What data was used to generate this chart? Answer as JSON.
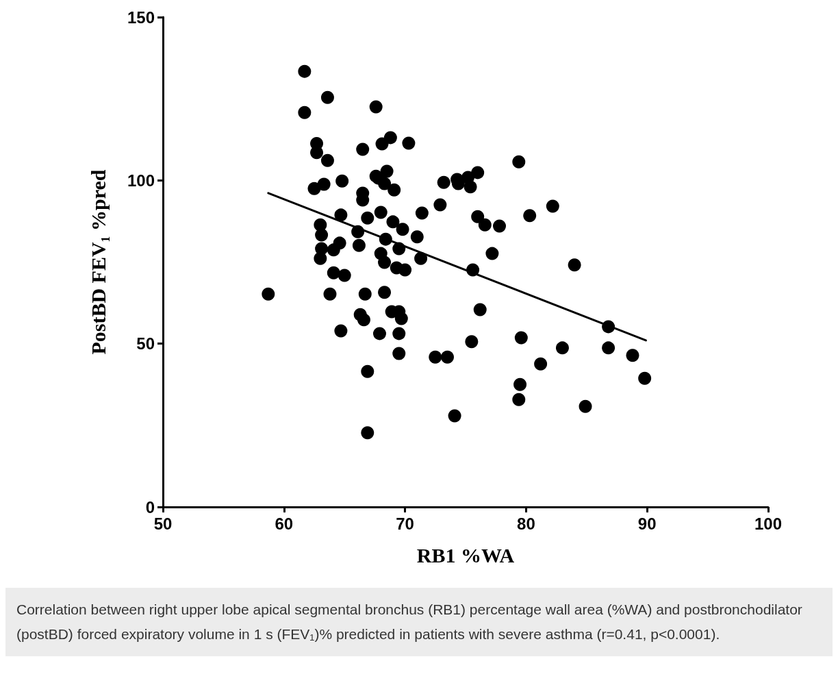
{
  "chart_data": {
    "type": "scatter",
    "xlabel": "RB1 %WA",
    "ylabel": "PostBD FEV₁ %pred",
    "xlim": [
      50,
      100
    ],
    "xticks": [
      50,
      60,
      70,
      80,
      90,
      100
    ],
    "ylim": [
      0,
      150
    ],
    "yticks": [
      0,
      50,
      100,
      150
    ],
    "grid": false,
    "marker": "circle",
    "annotations": [
      "Correlation between right upper lobe apical segmental bronchus (RB1) percentage wall area (%WA) and postbronchodilator (postBD) forced expiratory volume in 1 s (FEV₁)% predicted in patients with severe asthma (r=0.41, p<0.0001)."
    ],
    "series": [
      {
        "color": "#000000",
        "x": [
          58.7,
          61.7,
          61.7,
          63.6,
          67.6,
          62.7,
          62.7,
          63.6,
          66.5,
          68.1,
          68.8,
          70.3,
          62.5,
          63.3,
          64.8,
          67.6,
          67.8,
          68.5,
          68.3,
          69.1,
          66.5,
          66.5,
          64.7,
          66.9,
          68.0,
          69.0,
          69.8,
          71.0,
          71.4,
          72.9,
          73.2,
          74.3,
          74.4,
          75.2,
          75.4,
          76.0,
          76.0,
          76.6,
          77.8,
          80.3,
          82.2,
          79.4,
          77.2,
          84.0,
          75.6,
          76.2,
          86.8,
          75.5,
          79.6,
          72.5,
          73.5,
          83.0,
          86.8,
          88.8,
          81.2,
          89.8,
          79.5,
          79.4,
          84.9,
          74.1,
          63.0,
          63.1,
          66.1,
          66.2,
          68.4,
          69.5,
          71.3,
          63.0,
          63.1,
          64.1,
          64.6,
          68.0,
          68.3,
          69.3,
          70.0,
          64.1,
          65.0,
          63.8,
          66.7,
          68.3,
          66.3,
          66.6,
          68.9,
          69.5,
          69.7,
          64.7,
          67.9,
          69.5,
          69.5,
          66.9,
          66.9
        ],
        "values": [
          65.2,
          133.4,
          120.8,
          125.4,
          122.5,
          111.3,
          108.5,
          106.1,
          109.5,
          111.2,
          113.1,
          111.4,
          97.5,
          98.8,
          99.8,
          101.3,
          100.7,
          102.8,
          99.0,
          97.1,
          96.1,
          94.0,
          89.4,
          88.5,
          90.2,
          87.3,
          85.0,
          82.7,
          90.0,
          92.5,
          99.4,
          100.3,
          99.0,
          100.9,
          98.0,
          102.4,
          88.9,
          86.4,
          86.0,
          89.2,
          92.1,
          105.7,
          77.6,
          74.1,
          72.6,
          60.4,
          55.2,
          50.6,
          51.8,
          45.9,
          45.9,
          48.7,
          48.7,
          46.4,
          43.8,
          39.4,
          37.5,
          32.9,
          30.8,
          27.9,
          86.4,
          83.3,
          84.3,
          80.1,
          82.0,
          79.1,
          76.1,
          76.1,
          79.1,
          78.7,
          80.8,
          77.6,
          74.9,
          73.2,
          72.6,
          71.7,
          70.9,
          65.2,
          65.2,
          65.7,
          58.9,
          57.3,
          59.8,
          59.8,
          57.7,
          53.9,
          53.1,
          53.1,
          47.0,
          41.5,
          22.7
        ]
      },
      {
        "type": "line",
        "color": "#000000",
        "x": [
          58.7,
          89.9
        ],
        "values": [
          96.1,
          51.0
        ],
        "marker": "none",
        "line_style": "solid"
      }
    ]
  }
}
